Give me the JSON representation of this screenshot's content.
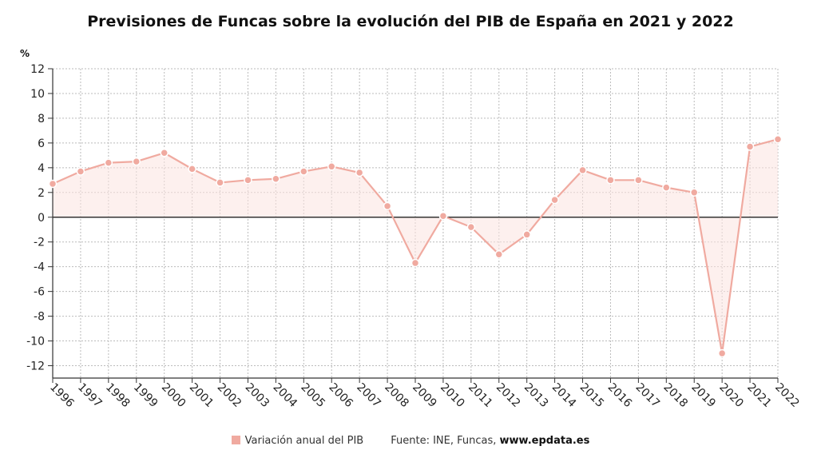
{
  "title": "Previsiones de Funcas sobre la evolución del PIB de España en 2021 y 2022",
  "unit": "%",
  "source": {
    "prefix": "Fuente: INE, Funcas, ",
    "url": "www.epdata.es"
  },
  "colors": {
    "series": "#f0aaa0",
    "fill": "#fbe4e0",
    "zero_line": "#333333",
    "grid": "#bbbbbb"
  },
  "chart_data": {
    "type": "line",
    "title": "Previsiones de Funcas sobre la evolución del PIB de España en 2021 y 2022",
    "xlabel": "",
    "ylabel": "%",
    "ylim": [
      -13,
      12
    ],
    "yticks": [
      12,
      10,
      8,
      6,
      4,
      2,
      0,
      -2,
      -4,
      -6,
      -8,
      -10,
      -12
    ],
    "grid": true,
    "legend_position": "bottom",
    "categories": [
      "1996",
      "1997",
      "1998",
      "1999",
      "2000",
      "2001",
      "2002",
      "2003",
      "2004",
      "2005",
      "2006",
      "2007",
      "2008",
      "2009",
      "2010",
      "2011",
      "2012",
      "2013",
      "2014",
      "2015",
      "2016",
      "2017",
      "2018",
      "2019",
      "2020",
      "2021",
      "2022"
    ],
    "series": [
      {
        "name": "Variación anual del PIB",
        "values": [
          2.7,
          3.7,
          4.4,
          4.5,
          5.2,
          3.9,
          2.8,
          3.0,
          3.1,
          3.7,
          4.1,
          3.6,
          0.9,
          -3.7,
          0.1,
          -0.8,
          -3.0,
          -1.4,
          1.4,
          3.8,
          3.0,
          3.0,
          2.4,
          2.0,
          -11.0,
          5.7,
          6.3
        ]
      }
    ]
  }
}
